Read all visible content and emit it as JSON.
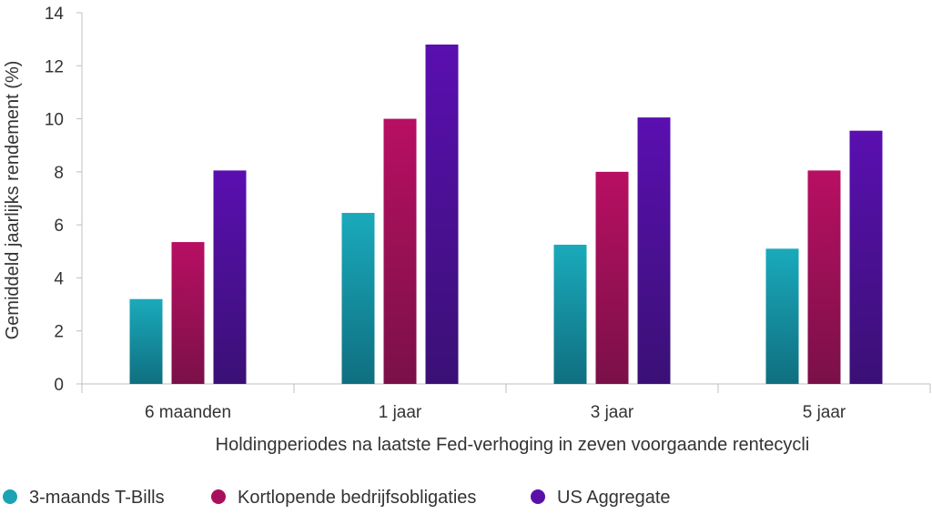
{
  "chart_data": {
    "type": "bar",
    "xlabel": "Holdingperiodes na laatste Fed-verhoging in zeven voorgaande rentecycli",
    "ylabel": "Gemiddeld jaarlijks rendement (%)",
    "ylim": [
      0,
      14
    ],
    "yticks": [
      "0",
      "2",
      "4",
      "6",
      "8",
      "10",
      "12",
      "14"
    ],
    "categories": [
      "6 maanden",
      "1 jaar",
      "3 jaar",
      "5 jaar"
    ],
    "series": [
      {
        "name": "3-maands T-Bills",
        "values": [
          3.2,
          6.45,
          5.25,
          5.1
        ],
        "color": "#1aa3b5"
      },
      {
        "name": "Kortlopende bedrijfsobligaties",
        "values": [
          5.35,
          10.0,
          8.0,
          8.05
        ],
        "color": "#a8105c"
      },
      {
        "name": "US Aggregate",
        "values": [
          8.05,
          12.8,
          10.05,
          9.55
        ],
        "color": "#5a10a8"
      }
    ],
    "grid": false,
    "legend_position": "bottom"
  }
}
